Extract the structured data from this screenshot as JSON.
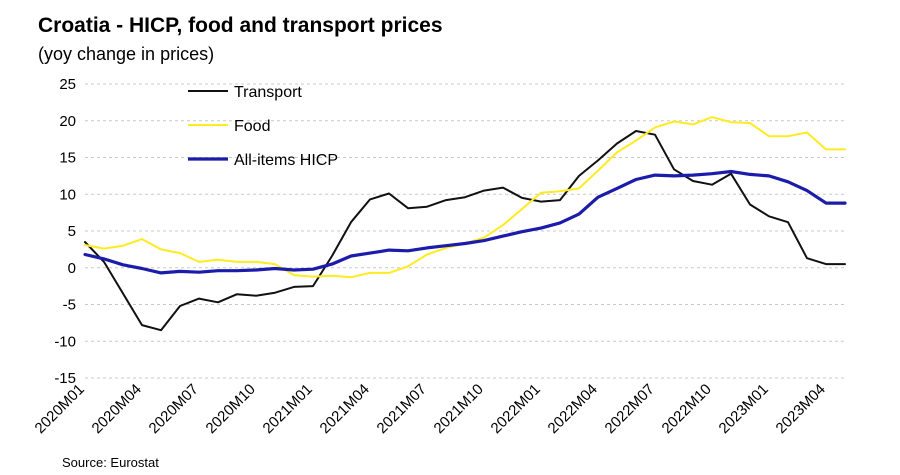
{
  "title": "Croatia - HICP, food and transport prices",
  "subtitle": "(yoy change in prices)",
  "source": "Source: Eurostat",
  "chart_data": {
    "type": "line",
    "title": "Croatia - HICP, food and transport prices",
    "subtitle": "(yoy change in prices)",
    "ylim": [
      -15,
      25
    ],
    "yticks": [
      25,
      20,
      15,
      10,
      5,
      0,
      -5,
      -10,
      -15
    ],
    "grid": "horizontal dashed",
    "legend_position": "top-left",
    "x": [
      "2020M01",
      "2020M02",
      "2020M03",
      "2020M04",
      "2020M05",
      "2020M06",
      "2020M07",
      "2020M08",
      "2020M09",
      "2020M10",
      "2020M11",
      "2020M12",
      "2021M01",
      "2021M02",
      "2021M03",
      "2021M04",
      "2021M05",
      "2021M06",
      "2021M07",
      "2021M08",
      "2021M09",
      "2021M10",
      "2021M11",
      "2021M12",
      "2022M01",
      "2022M02",
      "2022M03",
      "2022M04",
      "2022M05",
      "2022M06",
      "2022M07",
      "2022M08",
      "2022M09",
      "2022M10",
      "2022M11",
      "2022M12",
      "2023M01",
      "2023M02",
      "2023M03",
      "2023M04",
      "2023M05"
    ],
    "xtick_labels": [
      "2020M01",
      "2020M04",
      "2020M07",
      "2020M10",
      "2021M01",
      "2021M04",
      "2021M07",
      "2021M10",
      "2022M01",
      "2022M04",
      "2022M07",
      "2022M10",
      "2023M01",
      "2023M04"
    ],
    "series": [
      {
        "name": "Transport",
        "color": "#111111",
        "values": [
          3.5,
          0.8,
          -3.5,
          -7.8,
          -8.5,
          -5.2,
          -4.2,
          -4.7,
          -3.6,
          -3.8,
          -3.4,
          -2.6,
          -2.5,
          1.6,
          6.2,
          9.3,
          10.1,
          8.1,
          8.3,
          9.2,
          9.6,
          10.5,
          10.9,
          9.5,
          9.0,
          9.2,
          12.5,
          14.6,
          16.9,
          18.6,
          18.1,
          13.4,
          11.8,
          11.3,
          12.8,
          8.6,
          7.0,
          6.2,
          1.3,
          0.5,
          0.5
        ]
      },
      {
        "name": "Food",
        "color": "#FFEB1F",
        "values": [
          3.1,
          2.6,
          3.0,
          3.9,
          2.5,
          2.0,
          0.8,
          1.1,
          0.8,
          0.8,
          0.5,
          -1.0,
          -1.2,
          -1.1,
          -1.3,
          -0.7,
          -0.7,
          0.2,
          1.8,
          2.7,
          3.3,
          4.1,
          5.8,
          8.0,
          10.2,
          10.4,
          10.8,
          13.2,
          15.7,
          17.3,
          19.1,
          19.9,
          19.5,
          20.5,
          19.8,
          19.7,
          17.9,
          17.9,
          18.4,
          16.1,
          16.1
        ]
      },
      {
        "name": "All-items HICP",
        "color": "#1C1CAA",
        "values": [
          1.8,
          1.2,
          0.4,
          -0.1,
          -0.7,
          -0.5,
          -0.6,
          -0.4,
          -0.4,
          -0.3,
          -0.1,
          -0.3,
          -0.2,
          0.5,
          1.6,
          2.0,
          2.4,
          2.3,
          2.7,
          3.0,
          3.3,
          3.7,
          4.3,
          4.9,
          5.4,
          6.1,
          7.3,
          9.6,
          10.8,
          12.0,
          12.6,
          12.5,
          12.6,
          12.8,
          13.1,
          12.7,
          12.5,
          11.7,
          10.5,
          8.8,
          8.8
        ]
      }
    ]
  }
}
